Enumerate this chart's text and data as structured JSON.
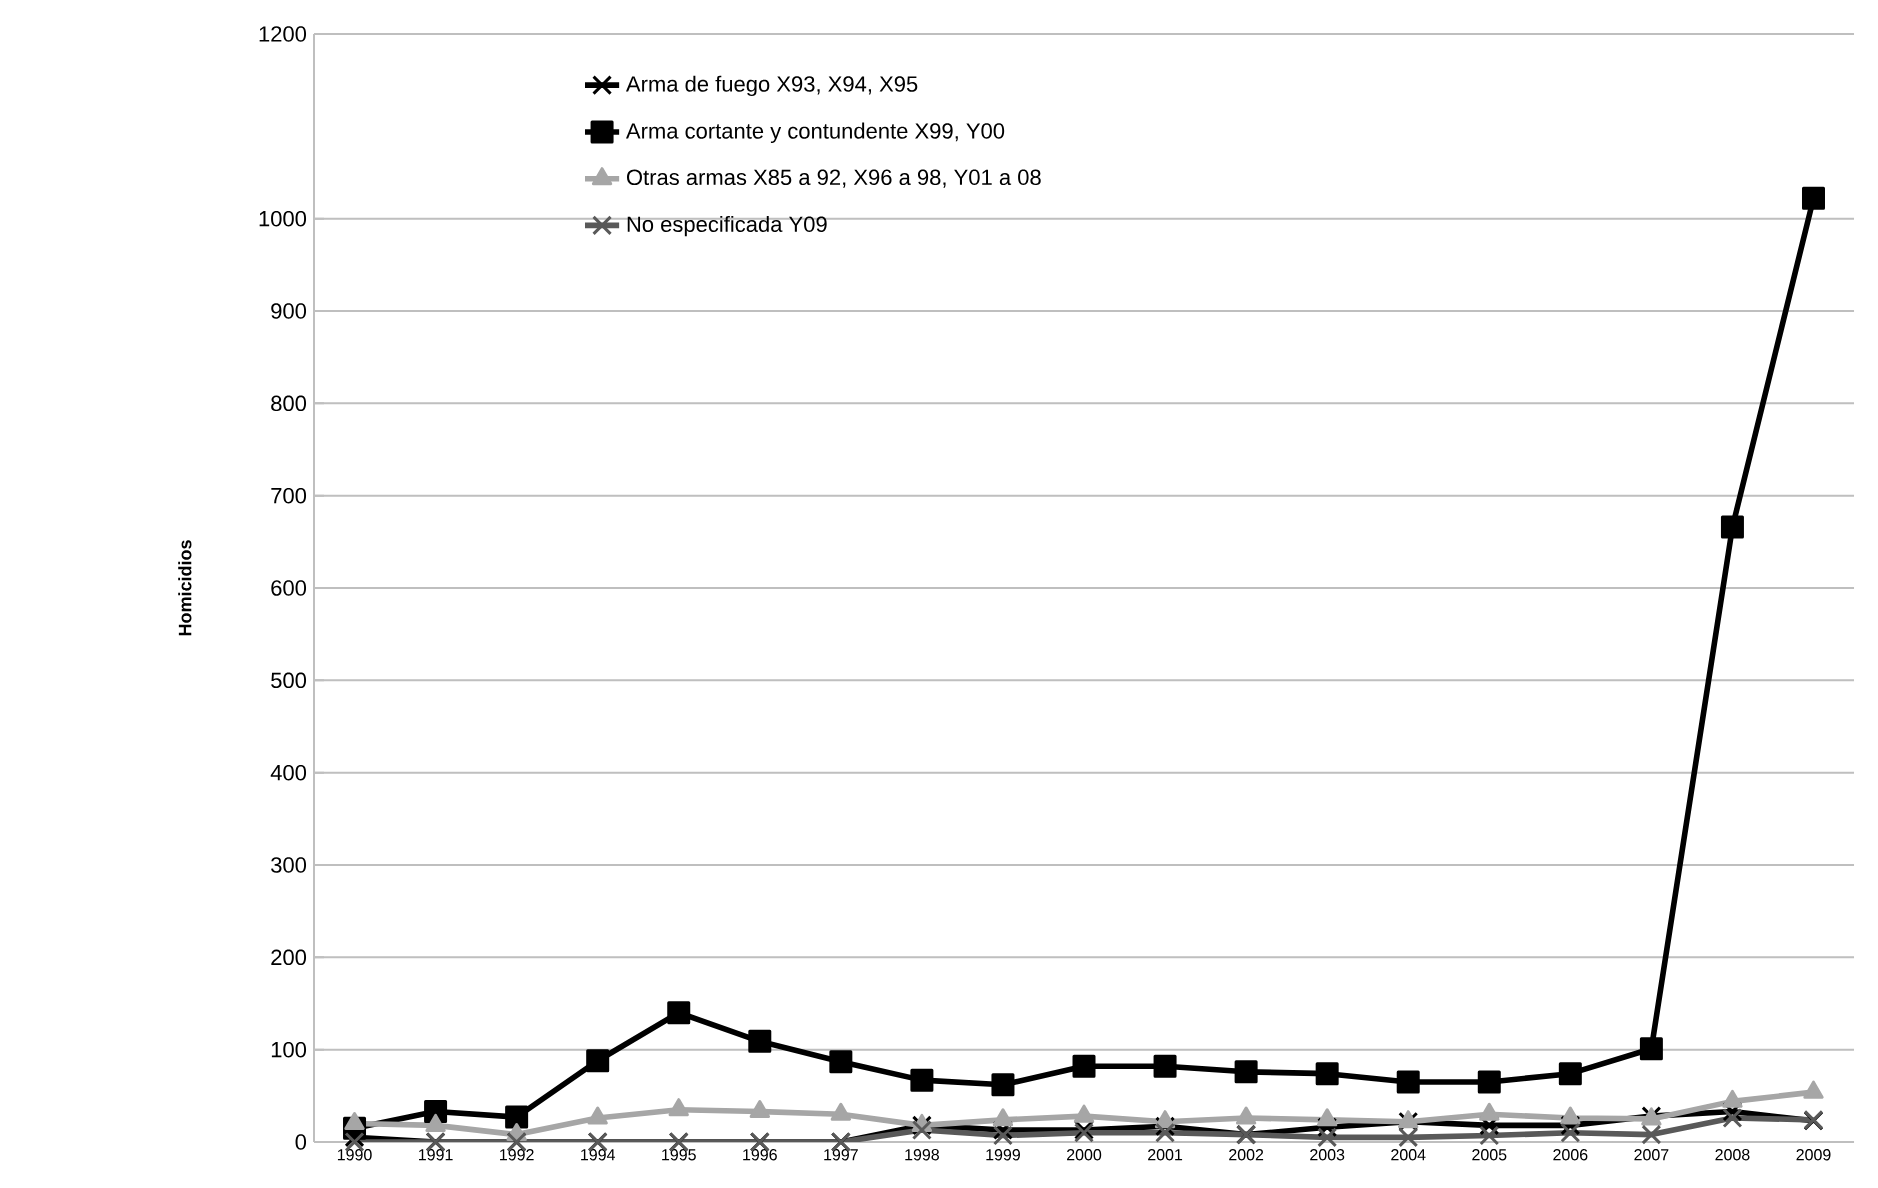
{
  "chart_data": {
    "type": "line",
    "ylabel": "Homicidios",
    "categories": [
      "1990",
      "1991",
      "1992",
      "1994",
      "1995",
      "1996",
      "1997",
      "1998",
      "1999",
      "2000",
      "2001",
      "2002",
      "2003",
      "2004",
      "2005",
      "2006",
      "2007",
      "2008",
      "2009"
    ],
    "series": [
      {
        "name": "Arma de fuego X93, X94, X95",
        "color": "#000000",
        "marker": "cross",
        "values": [
          5,
          0,
          0,
          0,
          0,
          0,
          0,
          18,
          13,
          13,
          17,
          8,
          16,
          22,
          18,
          18,
          28,
          33,
          23
        ]
      },
      {
        "name": "Arma cortante y contundente X99, Y00",
        "color": "#000000",
        "marker": "square",
        "values": [
          15,
          33,
          27,
          88,
          140,
          109,
          87,
          67,
          62,
          82,
          82,
          76,
          74,
          65,
          65,
          74,
          101,
          666,
          1022
        ]
      },
      {
        "name": "Otras armas X85 a 92, X96 a 98, Y01 a 08",
        "color": "#a6a6a6",
        "marker": "triangle",
        "values": [
          20,
          18,
          8,
          26,
          35,
          33,
          30,
          18,
          24,
          28,
          22,
          26,
          24,
          22,
          30,
          26,
          25,
          44,
          54
        ]
      },
      {
        "name": "No especificada Y09",
        "color": "#595959",
        "marker": "cross",
        "values": [
          0,
          0,
          0,
          0,
          0,
          0,
          0,
          13,
          7,
          10,
          10,
          8,
          5,
          5,
          7,
          10,
          8,
          26,
          24
        ]
      }
    ],
    "ylim": [
      0,
      1200
    ],
    "yticks": [
      0,
      100,
      200,
      300,
      400,
      500,
      600,
      700,
      800,
      900,
      1000,
      1200
    ],
    "grid": "y",
    "legend": "top left"
  }
}
